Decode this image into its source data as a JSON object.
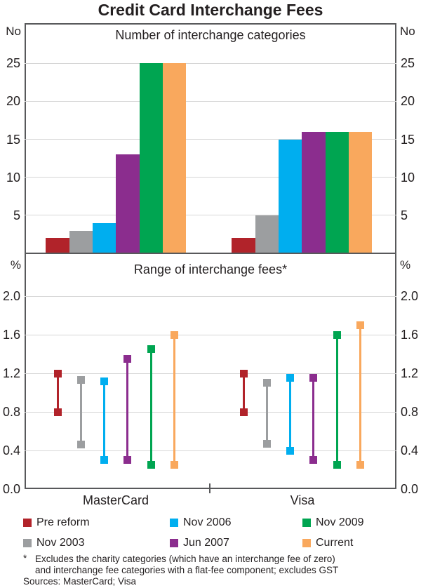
{
  "title": "Credit Card Interchange Fees",
  "colors": {
    "frame": "#58595b",
    "gridline": "#d6d6d6",
    "pre_reform": "#b1232a",
    "nov_2003": "#9c9ea0",
    "nov_2006": "#00aeef",
    "jun_2007": "#8b2d8e",
    "nov_2009": "#00a551",
    "current": "#f9a85d"
  },
  "chart_data": [
    {
      "type": "bar",
      "title": "Number of interchange categories",
      "unit": "No",
      "categories": [
        "MasterCard",
        "Visa"
      ],
      "yticks": [
        5,
        10,
        15,
        20,
        25
      ],
      "ytick_labels": [
        "5",
        "10",
        "15",
        "20",
        "25"
      ],
      "ylim": [
        0,
        30.3
      ],
      "grid": true,
      "legend_position": "below-both-panels",
      "series": [
        {
          "name": "Pre reform",
          "color": "#b1232a",
          "values": [
            2,
            2
          ]
        },
        {
          "name": "Nov 2003",
          "color": "#9c9ea0",
          "values": [
            3,
            5
          ]
        },
        {
          "name": "Nov 2006",
          "color": "#00aeef",
          "values": [
            4,
            15
          ]
        },
        {
          "name": "Jun 2007",
          "color": "#8b2d8e",
          "values": [
            13,
            16
          ]
        },
        {
          "name": "Nov 2009",
          "color": "#00a551",
          "values": [
            25,
            16
          ]
        },
        {
          "name": "Current",
          "color": "#f9a85d",
          "values": [
            25,
            16
          ]
        }
      ]
    },
    {
      "type": "range",
      "title": "Range of interchange fees*",
      "unit": "%",
      "categories": [
        "MasterCard",
        "Visa"
      ],
      "yticks": [
        0,
        0.4,
        0.8,
        1.2,
        1.6,
        2.0
      ],
      "ytick_labels": [
        "0.0",
        "0.4",
        "0.8",
        "1.2",
        "1.6",
        "2.0"
      ],
      "ylim": [
        0,
        2.445
      ],
      "grid": true,
      "series": [
        {
          "name": "Pre reform",
          "color": "#b1232a",
          "ranges": [
            [
              0.8,
              1.2
            ],
            [
              0.8,
              1.2
            ]
          ]
        },
        {
          "name": "Nov 2003",
          "color": "#9c9ea0",
          "ranges": [
            [
              0.46,
              1.13
            ],
            [
              0.47,
              1.1
            ]
          ]
        },
        {
          "name": "Nov 2006",
          "color": "#00aeef",
          "ranges": [
            [
              0.3,
              1.12
            ],
            [
              0.4,
              1.15
            ]
          ]
        },
        {
          "name": "Jun 2007",
          "color": "#8b2d8e",
          "ranges": [
            [
              0.3,
              1.35
            ],
            [
              0.3,
              1.15
            ]
          ]
        },
        {
          "name": "Nov 2009",
          "color": "#00a551",
          "ranges": [
            [
              0.25,
              1.45
            ],
            [
              0.25,
              1.6
            ]
          ]
        },
        {
          "name": "Current",
          "color": "#f9a85d",
          "ranges": [
            [
              0.25,
              1.6
            ],
            [
              0.25,
              1.7
            ]
          ]
        }
      ]
    }
  ],
  "legend": {
    "items": [
      {
        "label": "Pre reform",
        "color": "#b1232a"
      },
      {
        "label": "Nov 2006",
        "color": "#00aeef"
      },
      {
        "label": "Nov 2009",
        "color": "#00a551"
      },
      {
        "label": "Nov 2003",
        "color": "#9c9ea0"
      },
      {
        "label": "Jun 2007",
        "color": "#8b2d8e"
      },
      {
        "label": "Current",
        "color": "#f9a85d"
      }
    ]
  },
  "footnote": {
    "marker": "*",
    "line1": "Excludes the charity categories (which have an interchange fee of zero)",
    "line2": "and interchange fee categories with a flat-fee component; excludes GST"
  },
  "sources": "Sources: MasterCard; Visa"
}
